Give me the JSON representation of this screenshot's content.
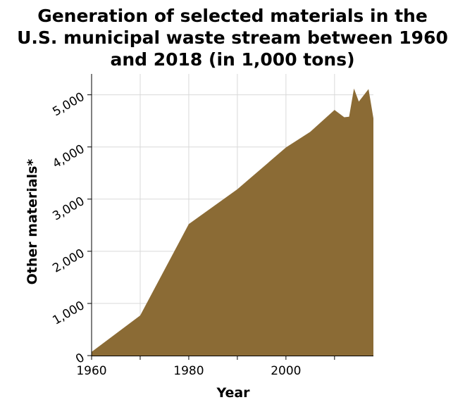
{
  "chart_data": {
    "type": "area",
    "title_lines": [
      "Generation of selected materials in the",
      "U.S. municipal waste stream between 1960",
      "and 2018 (in 1,000 tons)"
    ],
    "xlabel": "Year",
    "ylabel": "Other materials*",
    "xlim": [
      1960,
      2018
    ],
    "ylim": [
      0,
      5400
    ],
    "x_ticks": [
      1960,
      1970,
      1980,
      1990,
      2000,
      2010
    ],
    "x_tick_labels": [
      "1960",
      "",
      "1980",
      "",
      "2000",
      ""
    ],
    "y_ticks": [
      0,
      1000,
      2000,
      3000,
      4000,
      5000
    ],
    "y_tick_labels": [
      "0",
      "1,000",
      "2,000",
      "3,000",
      "4,000",
      "5,000"
    ],
    "grid": true,
    "fill_color": "#8b6b35",
    "series": [
      {
        "x": [
          1960,
          1970,
          1980,
          1990,
          2000,
          2005,
          2010,
          2012,
          2013,
          2014,
          2015,
          2017,
          2018
        ],
        "values": [
          70,
          770,
          2520,
          3190,
          3990,
          4290,
          4710,
          4570,
          4580,
          5120,
          4870,
          5110,
          4550
        ]
      }
    ]
  }
}
